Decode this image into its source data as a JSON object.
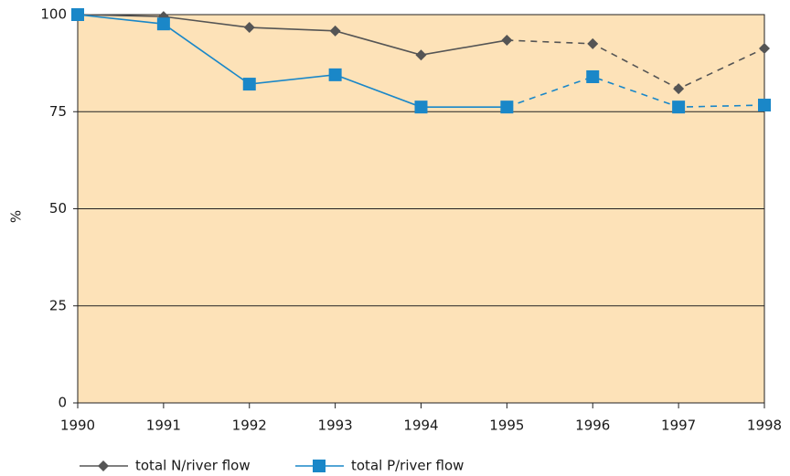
{
  "chart_data": {
    "type": "line",
    "y_label": "%",
    "x": [
      1990,
      1991,
      1992,
      1993,
      1994,
      1995,
      1996,
      1997,
      1998
    ],
    "xlim": [
      1990,
      1998
    ],
    "xticks": [
      1990,
      1991,
      1992,
      1993,
      1994,
      1995,
      1996,
      1997,
      1998
    ],
    "ylim": [
      0,
      100
    ],
    "yticks": [
      0,
      25,
      50,
      75,
      100
    ],
    "grid": true,
    "background": "#fde2b8",
    "dashed_from": 1995,
    "legend": "bottom",
    "series": [
      {
        "name": "total N/river flow",
        "color": "#555555",
        "marker": "diamond",
        "values": [
          100,
          99.5,
          96.7,
          95.8,
          89.6,
          93.4,
          92.5,
          80.9,
          91.3
        ]
      },
      {
        "name": "total P/river flow",
        "color": "#1a87c8",
        "marker": "square",
        "values": [
          100,
          97.6,
          82.1,
          84.5,
          76.2,
          76.2,
          84.0,
          76.2,
          76.7
        ]
      }
    ]
  }
}
